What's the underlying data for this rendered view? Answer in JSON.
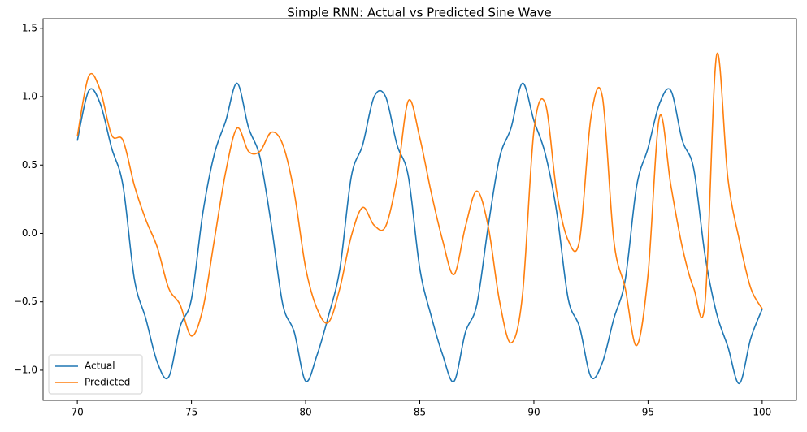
{
  "chart_data": {
    "type": "line",
    "title": "Simple RNN: Actual vs Predicted Sine Wave",
    "x": [
      70,
      70.5,
      71,
      71.5,
      72,
      72.5,
      73,
      73.5,
      74,
      74.5,
      75,
      75.5,
      76,
      76.5,
      77,
      77.5,
      78,
      78.5,
      79,
      79.5,
      80,
      80.5,
      81,
      81.5,
      82,
      82.5,
      83,
      83.5,
      84,
      84.5,
      85,
      85.5,
      86,
      86.5,
      87,
      87.5,
      88,
      88.5,
      89,
      89.5,
      90,
      90.5,
      91,
      91.5,
      92,
      92.5,
      93,
      93.5,
      94,
      94.5,
      95,
      95.5,
      96,
      96.5,
      97,
      97.5,
      98,
      98.5,
      99,
      99.5,
      100
    ],
    "series": [
      {
        "name": "Actual",
        "color": "#1f77b4",
        "values": [
          0.678,
          1.043,
          0.951,
          0.626,
          0.35,
          -0.335,
          -0.623,
          -0.94,
          -1.05,
          -0.683,
          -0.479,
          0.151,
          0.579,
          0.822,
          1.098,
          0.774,
          0.557,
          0.06,
          -0.519,
          -0.72,
          -1.079,
          -0.889,
          -0.603,
          -0.259,
          0.414,
          0.648,
          0.999,
          1.002,
          0.65,
          0.417,
          -0.255,
          -0.603,
          -0.886,
          -1.081,
          -0.723,
          -0.52,
          0.054,
          0.556,
          0.772,
          1.098,
          0.825,
          0.581,
          0.155,
          -0.476,
          -0.684,
          -1.048,
          -0.944,
          -0.624,
          -0.34,
          0.345,
          0.625,
          0.948,
          1.044,
          0.68,
          0.473,
          -0.164,
          -0.582,
          -0.83,
          -1.097,
          -0.767,
          -0.553
        ]
      },
      {
        "name": "Predicted",
        "color": "#ff7f0e",
        "values": [
          0.71,
          1.15,
          1.05,
          0.72,
          0.68,
          0.35,
          0.1,
          -0.1,
          -0.4,
          -0.52,
          -0.75,
          -0.55,
          -0.05,
          0.45,
          0.77,
          0.6,
          0.6,
          0.74,
          0.65,
          0.3,
          -0.25,
          -0.55,
          -0.65,
          -0.4,
          -0.02,
          0.19,
          0.06,
          0.05,
          0.4,
          0.97,
          0.7,
          0.3,
          -0.05,
          -0.3,
          0.05,
          0.31,
          0.05,
          -0.5,
          -0.8,
          -0.45,
          0.75,
          0.95,
          0.3,
          -0.05,
          -0.05,
          0.85,
          1.0,
          -0.05,
          -0.4,
          -0.82,
          -0.3,
          0.85,
          0.35,
          -0.1,
          -0.4,
          -0.5,
          1.3,
          0.4,
          -0.05,
          -0.4,
          -0.55
        ]
      }
    ],
    "xlim": [
      68.5,
      101.5
    ],
    "ylim": [
      -1.22,
      1.57
    ],
    "xticks": [
      70,
      75,
      80,
      85,
      90,
      95,
      100
    ],
    "yticks": [
      {
        "value": -1,
        "label": "−1.0"
      },
      {
        "value": -0.5,
        "label": "−0.5"
      },
      {
        "value": 0,
        "label": "0.0"
      },
      0.5,
      {
        "value": 1,
        "label": "1.0"
      },
      1.5
    ],
    "legend": "lower left",
    "grid": false
  }
}
